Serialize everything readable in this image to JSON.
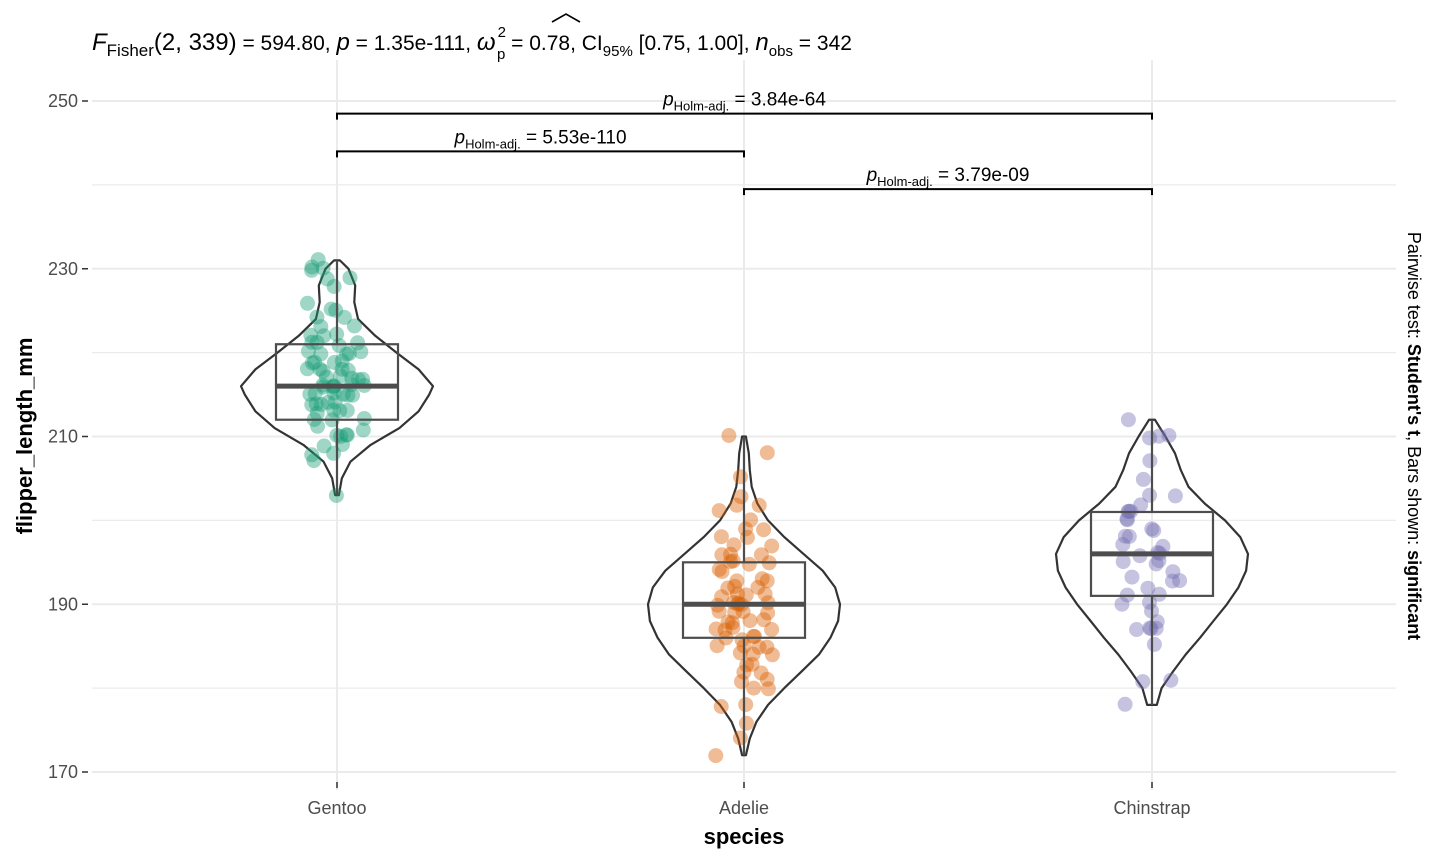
{
  "chart_data": {
    "type": "violin-box-scatter",
    "subtitle": {
      "F_label": "F",
      "F_sub": "Fisher",
      "df": "(2, 339)",
      "F_value": " = 594.80, ",
      "p_label": "p",
      "p_value": " = 1.35e-111, ",
      "omega_label": "ω",
      "omega_sup": "2",
      "omega_sub": "p",
      "omega_value": " = 0.78, CI",
      "ci_sub": "95%",
      "ci_value": " [0.75, 1.00], ",
      "n_label": "n",
      "n_sub": "obs",
      "n_value": " = 342"
    },
    "xlabel": "species",
    "ylabel": "flipper_length_mm",
    "ylim": [
      168,
      252
    ],
    "yticks": [
      170,
      190,
      210,
      230,
      250
    ],
    "categories": [
      "Gentoo",
      "Adelie",
      "Chinstrap"
    ],
    "colors": {
      "Gentoo": "#1b9e77",
      "Adelie": "#d95f02",
      "Chinstrap": "#7570b3",
      "grid": "#ebebeb",
      "outline": "#333333",
      "box": "#4d4d4d"
    },
    "series": [
      {
        "name": "Gentoo",
        "box": {
          "q1": 212,
          "median": 216,
          "q3": 221,
          "min": 203,
          "max": 231
        },
        "violin": {
          "ymin": 203,
          "ymax": 231,
          "profile": [
            [
              203,
              0.02
            ],
            [
              205,
              0.05
            ],
            [
              207,
              0.14
            ],
            [
              209,
              0.35
            ],
            [
              211,
              0.65
            ],
            [
              213,
              0.85
            ],
            [
              215,
              0.96
            ],
            [
              216,
              1.0
            ],
            [
              218,
              0.85
            ],
            [
              220,
              0.62
            ],
            [
              222,
              0.4
            ],
            [
              224,
              0.22
            ],
            [
              226,
              0.18
            ],
            [
              228,
              0.19
            ],
            [
              230,
              0.12
            ],
            [
              231,
              0.03
            ]
          ]
        },
        "points": [
          203,
          207,
          208,
          208,
          209,
          209,
          210,
          210,
          210,
          210,
          211,
          211,
          212,
          212,
          212,
          213,
          213,
          213,
          213,
          214,
          214,
          214,
          214,
          214,
          215,
          215,
          215,
          215,
          215,
          215,
          216,
          216,
          216,
          216,
          216,
          216,
          216,
          217,
          217,
          217,
          217,
          217,
          218,
          218,
          218,
          218,
          218,
          219,
          219,
          219,
          219,
          220,
          220,
          220,
          220,
          220,
          221,
          221,
          221,
          221,
          222,
          222,
          222,
          223,
          223,
          224,
          224,
          225,
          225,
          226,
          228,
          229,
          229,
          230,
          230,
          230,
          231
        ]
      },
      {
        "name": "Adelie",
        "box": {
          "q1": 186,
          "median": 190,
          "q3": 195,
          "min": 172,
          "max": 210
        },
        "violin": {
          "ymin": 172,
          "ymax": 210,
          "profile": [
            [
              172,
              0.02
            ],
            [
              174,
              0.06
            ],
            [
              176,
              0.13
            ],
            [
              178,
              0.25
            ],
            [
              180,
              0.42
            ],
            [
              182,
              0.6
            ],
            [
              184,
              0.78
            ],
            [
              186,
              0.9
            ],
            [
              188,
              0.98
            ],
            [
              190,
              1.0
            ],
            [
              192,
              0.95
            ],
            [
              194,
              0.82
            ],
            [
              196,
              0.62
            ],
            [
              198,
              0.42
            ],
            [
              200,
              0.25
            ],
            [
              202,
              0.14
            ],
            [
              204,
              0.08
            ],
            [
              206,
              0.06
            ],
            [
              208,
              0.05
            ],
            [
              210,
              0.02
            ]
          ]
        },
        "points": [
          172,
          174,
          176,
          178,
          178,
          180,
          180,
          181,
          181,
          182,
          182,
          183,
          183,
          184,
          184,
          184,
          185,
          185,
          185,
          185,
          186,
          186,
          186,
          186,
          187,
          187,
          187,
          187,
          188,
          188,
          188,
          188,
          189,
          189,
          189,
          189,
          190,
          190,
          190,
          190,
          190,
          190,
          191,
          191,
          191,
          191,
          192,
          192,
          192,
          193,
          193,
          193,
          194,
          194,
          195,
          195,
          195,
          195,
          196,
          196,
          196,
          197,
          197,
          198,
          198,
          199,
          199,
          200,
          201,
          202,
          202,
          203,
          205,
          208,
          210
        ]
      },
      {
        "name": "Chinstrap",
        "box": {
          "q1": 191,
          "median": 196,
          "q3": 201,
          "min": 178,
          "max": 212
        },
        "violin": {
          "ymin": 178,
          "ymax": 212,
          "profile": [
            [
              178,
              0.05
            ],
            [
              180,
              0.1
            ],
            [
              182,
              0.22
            ],
            [
              184,
              0.35
            ],
            [
              186,
              0.5
            ],
            [
              188,
              0.64
            ],
            [
              190,
              0.78
            ],
            [
              192,
              0.9
            ],
            [
              194,
              0.98
            ],
            [
              196,
              1.0
            ],
            [
              198,
              0.92
            ],
            [
              200,
              0.76
            ],
            [
              202,
              0.55
            ],
            [
              204,
              0.38
            ],
            [
              206,
              0.3
            ],
            [
              208,
              0.24
            ],
            [
              210,
              0.14
            ],
            [
              212,
              0.03
            ]
          ]
        },
        "points": [
          178,
          181,
          181,
          185,
          187,
          187,
          187,
          187,
          188,
          189,
          190,
          190,
          191,
          191,
          192,
          193,
          193,
          193,
          194,
          195,
          195,
          195,
          196,
          196,
          196,
          197,
          197,
          198,
          198,
          199,
          199,
          200,
          200,
          201,
          201,
          201,
          202,
          203,
          203,
          205,
          207,
          210,
          210,
          210,
          212
        ]
      }
    ],
    "comparisons": [
      {
        "from": "Gentoo",
        "to": "Chinstrap",
        "y": 248.5,
        "label": "p",
        "label_sub": "Holm-adj.",
        "label_value": " = 3.84e-64"
      },
      {
        "from": "Gentoo",
        "to": "Adelie",
        "y": 244.0,
        "label": "p",
        "label_sub": "Holm-adj.",
        "label_value": " = 5.53e-110"
      },
      {
        "from": "Adelie",
        "to": "Chinstrap",
        "y": 239.5,
        "label": "p",
        "label_sub": "Holm-adj.",
        "label_value": " = 3.79e-09"
      }
    ],
    "caption_right": {
      "prefix": "Pairwise test: ",
      "test": "Student's t",
      "middle": ", Bars shown: ",
      "shown": "significant"
    },
    "grid": true,
    "legend": "none"
  }
}
